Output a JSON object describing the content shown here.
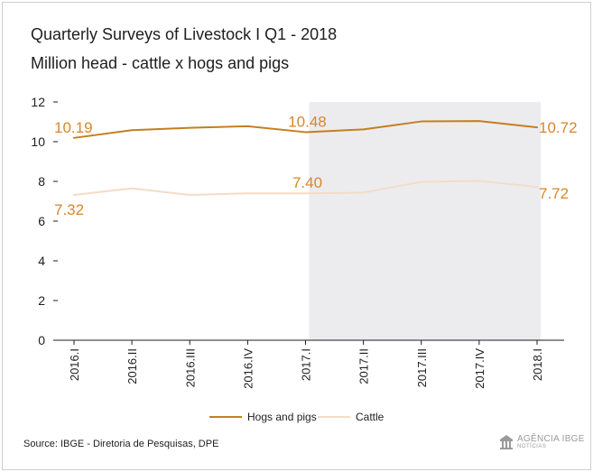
{
  "title": "Quarterly Surveys of Livestock I  Q1 - 2018",
  "subtitle": "Million head - cattle x hogs and pigs",
  "source": "Source: IBGE - Diretoria de Pesquisas, DPE",
  "logo": {
    "name": "AGÊNCIA IBGE",
    "sub": "NOTÍCIAS",
    "icon": "ibge-agency-icon"
  },
  "colors": {
    "hogs": "#c47f1e",
    "cattle": "#f2dcc6",
    "label": "#d9862b",
    "shade": "#ececef",
    "axis": "#1e1e1e",
    "grid": "#d6d6d6"
  },
  "chart_data": {
    "type": "line",
    "categories": [
      "2016.I",
      "2016.II",
      "2016.III",
      "2016.IV",
      "2017.I",
      "2017.II",
      "2017.III",
      "2017.IV",
      "2018.I"
    ],
    "series": [
      {
        "name": "Hogs and pigs",
        "values": [
          10.19,
          10.58,
          10.7,
          10.78,
          10.48,
          10.62,
          11.02,
          11.04,
          10.72
        ]
      },
      {
        "name": "Cattle",
        "values": [
          7.32,
          7.65,
          7.32,
          7.4,
          7.4,
          7.43,
          7.98,
          8.02,
          7.72
        ]
      }
    ],
    "data_labels": [
      {
        "series": 0,
        "index": 0,
        "text": "10.19"
      },
      {
        "series": 0,
        "index": 4,
        "text": "10.48"
      },
      {
        "series": 0,
        "index": 8,
        "text": "10.72"
      },
      {
        "series": 1,
        "index": 0,
        "text": "7.32"
      },
      {
        "series": 1,
        "index": 4,
        "text": "7.40"
      },
      {
        "series": 1,
        "index": 8,
        "text": "7.72"
      }
    ],
    "ylim": [
      0,
      12
    ],
    "yticks": [
      0,
      2,
      4,
      6,
      8,
      10,
      12
    ],
    "highlight_range": [
      "2017.I",
      "2018.I"
    ],
    "grid": false,
    "legend": "bottom",
    "xlabel": "",
    "ylabel": ""
  }
}
